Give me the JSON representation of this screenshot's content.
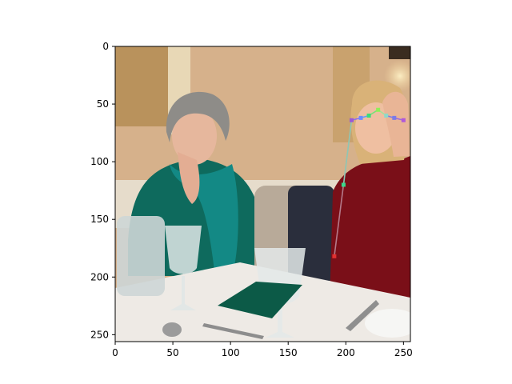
{
  "chart_data": {
    "type": "scatter",
    "title": "",
    "xlabel": "",
    "ylabel": "",
    "xlim": [
      0,
      256
    ],
    "ylim": [
      256,
      0
    ],
    "grid": false,
    "legend": "none",
    "x_ticks": [
      0,
      50,
      100,
      150,
      200,
      250
    ],
    "y_ticks": [
      0,
      50,
      100,
      150,
      200,
      250
    ],
    "image": {
      "subject": "photo",
      "colors": {
        "wall": "#d8b48c",
        "tablecloth": "#ede9e4",
        "left_sweater": "#0f6b5e",
        "scarf": "#138a86",
        "right_sweater": "#7a0f18",
        "left_hair": "#8b8a86",
        "right_hair": "#d8b27a"
      }
    },
    "keypoints": [
      {
        "x": 205,
        "y": 64,
        "color": "#9b59d6"
      },
      {
        "x": 213,
        "y": 62,
        "color": "#6c8cff"
      },
      {
        "x": 220,
        "y": 60,
        "color": "#3cdc78"
      },
      {
        "x": 228,
        "y": 55,
        "color": "#90ee58"
      },
      {
        "x": 235,
        "y": 60,
        "color": "#8fd9c9"
      },
      {
        "x": 242,
        "y": 62,
        "color": "#7b7be8"
      },
      {
        "x": 250,
        "y": 64,
        "color": "#b058d8"
      },
      {
        "x": 198,
        "y": 120,
        "color": "#39d98a"
      },
      {
        "x": 190,
        "y": 182,
        "color": "#e03030"
      }
    ],
    "segments": [
      {
        "from": 0,
        "to": 1,
        "color": "#8a6cf0"
      },
      {
        "from": 1,
        "to": 2,
        "color": "#5aa0ff"
      },
      {
        "from": 2,
        "to": 3,
        "color": "#7be07b"
      },
      {
        "from": 3,
        "to": 4,
        "color": "#a4e29a"
      },
      {
        "from": 4,
        "to": 5,
        "color": "#7b7be8"
      },
      {
        "from": 5,
        "to": 6,
        "color": "#9a6ae0"
      },
      {
        "from": 0,
        "to": 7,
        "color": "#8ec6b4"
      },
      {
        "from": 7,
        "to": 8,
        "color": "#b47a8a"
      }
    ]
  }
}
